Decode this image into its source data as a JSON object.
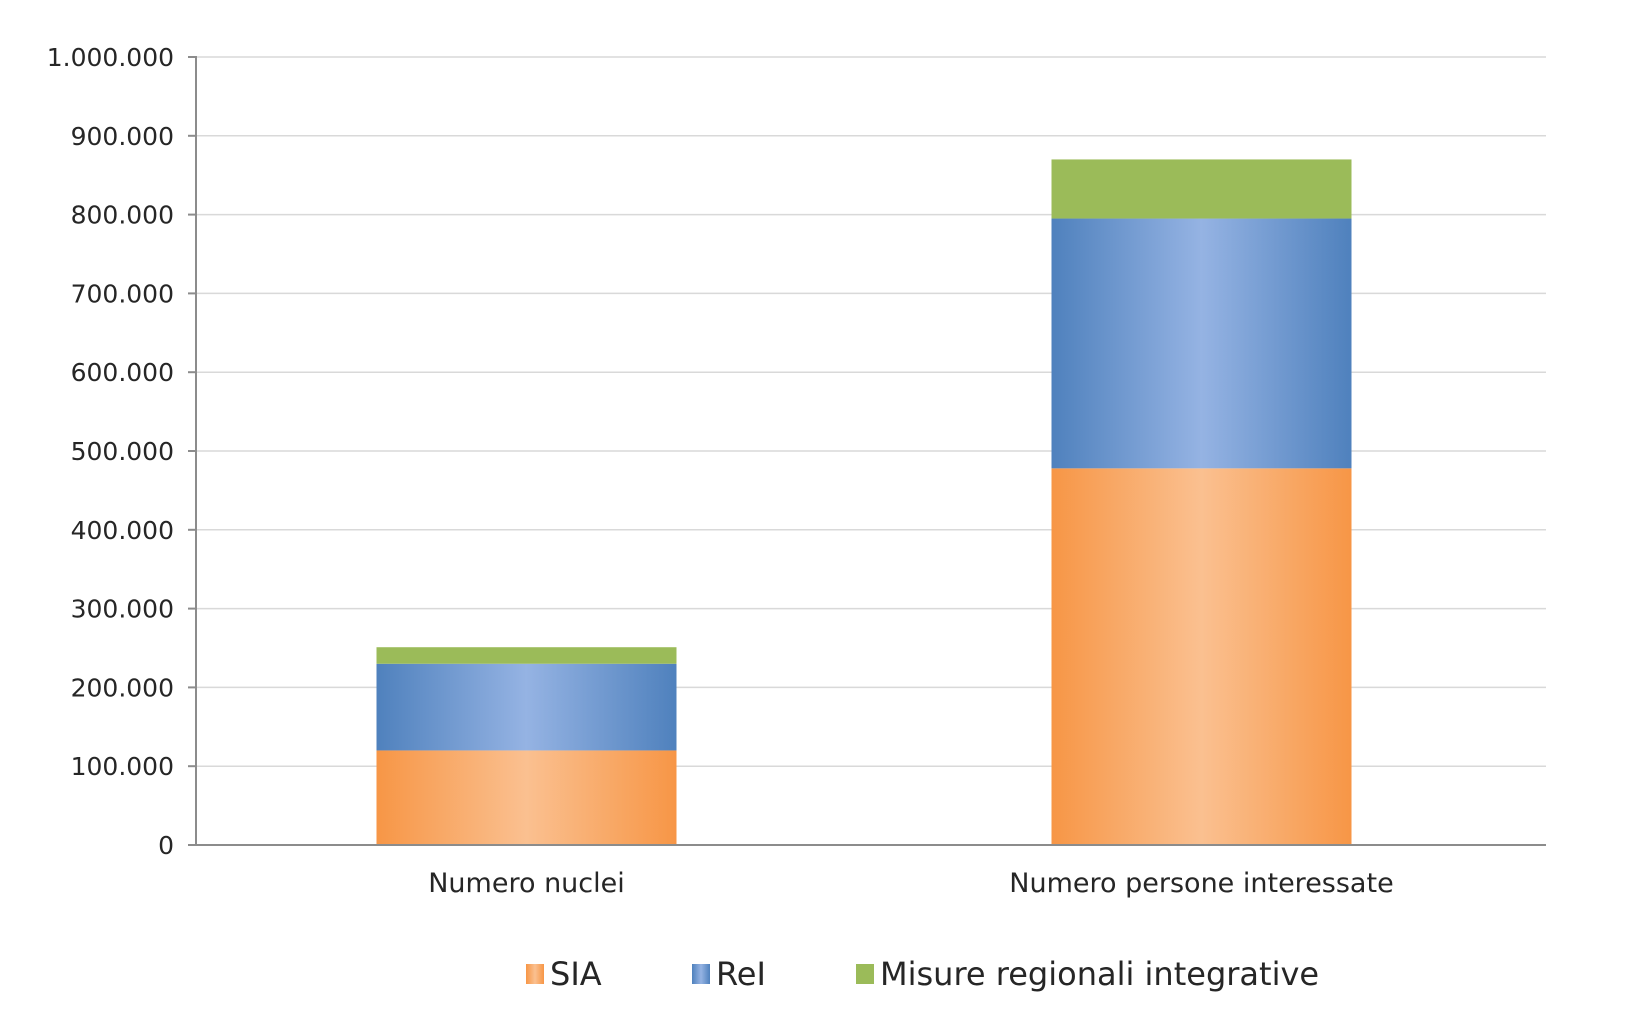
{
  "chart_data": {
    "type": "bar",
    "stacked": true,
    "title": "",
    "xlabel": "",
    "ylabel": "",
    "categories": [
      "Numero nuclei",
      "Numero persone interessate"
    ],
    "series": [
      {
        "name": "SIA",
        "values": [
          120000,
          478000
        ],
        "color": "#f79646"
      },
      {
        "name": "ReI",
        "values": [
          110000,
          317000
        ],
        "color": "#4f81bd"
      },
      {
        "name": "Misure regionali integrative",
        "values": [
          21000,
          75000
        ],
        "color": "#9bbb59"
      }
    ],
    "ylim": [
      0,
      1000000
    ],
    "yticks": [
      "0",
      "100.000",
      "200.000",
      "300.000",
      "400.000",
      "500.000",
      "600.000",
      "700.000",
      "800.000",
      "900.000",
      "1.000.000"
    ],
    "grid": true,
    "legend_position": "bottom"
  }
}
